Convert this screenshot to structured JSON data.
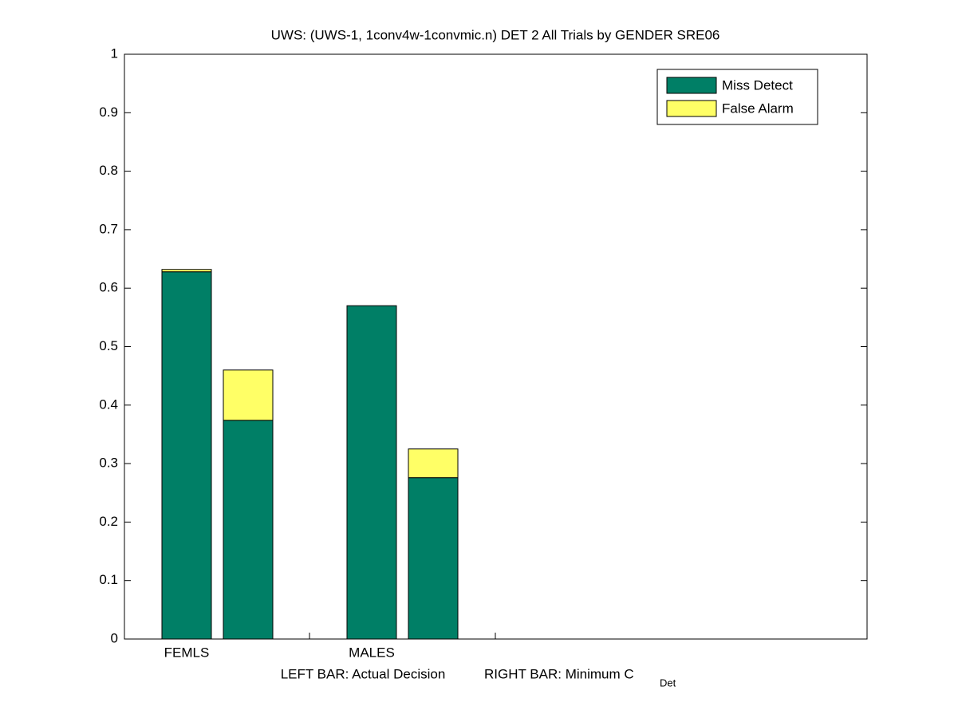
{
  "chart_data": {
    "type": "stacked_bar",
    "title": "UWS: (UWS-1, 1conv4w-1convmic.n) DET 2 All Trials by GENDER SRE06",
    "categories": [
      "FEMLS",
      null,
      "MALES",
      null
    ],
    "series": [
      {
        "name": "Miss Detect",
        "color": "#007f66",
        "values": [
          0.628,
          0.374,
          0.57,
          0.276
        ]
      },
      {
        "name": "False Alarm",
        "color": "#ffff66",
        "values": [
          0.004,
          0.086,
          0,
          0.049
        ]
      }
    ],
    "x_label": [
      "LEFT BAR: Actual Decision",
      "RIGHT BAR: Minimum C"
    ],
    "x_label_subscript": "Det",
    "ylim": [
      0,
      1
    ],
    "yticks": [
      0,
      0.1,
      0.2,
      0.3,
      0.4,
      0.5,
      0.6,
      0.7,
      0.8,
      0.9,
      1
    ],
    "legend": "upper right"
  }
}
